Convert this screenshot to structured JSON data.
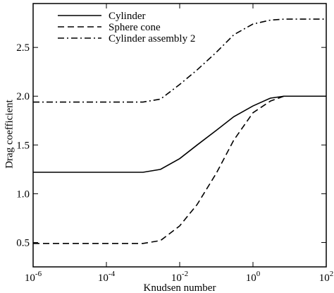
{
  "chart_data": {
    "type": "line",
    "x_label": "Knudsen number",
    "y_label": "Drag coefficient",
    "x_scale": "log",
    "x": [
      1e-06,
      0.001,
      0.003,
      0.01,
      0.03,
      0.1,
      0.3,
      1,
      3,
      7,
      100
    ],
    "series": [
      {
        "name": "Cylinder",
        "color": "#000000",
        "style": "solid",
        "values": [
          1.22,
          1.22,
          1.25,
          1.36,
          1.5,
          1.65,
          1.79,
          1.9,
          1.98,
          2.0,
          2.0
        ]
      },
      {
        "name": "Sphere cone",
        "color": "#000000",
        "style": "dashed",
        "values": [
          0.49,
          0.49,
          0.52,
          0.67,
          0.89,
          1.21,
          1.55,
          1.83,
          1.95,
          2.0,
          2.0
        ]
      },
      {
        "name": "Cylinder assembly 2",
        "color": "#000000",
        "style": "dashdot",
        "values": [
          1.94,
          1.94,
          1.97,
          2.12,
          2.27,
          2.45,
          2.63,
          2.74,
          2.78,
          2.79,
          2.79
        ]
      }
    ],
    "xlim": [
      1e-06,
      100
    ],
    "xticks": [
      {
        "value": 1e-06,
        "label": "10",
        "exponent": "-6"
      },
      {
        "value": 0.0001,
        "label": "10",
        "exponent": "-4"
      },
      {
        "value": 0.01,
        "label": "10",
        "exponent": "-2"
      },
      {
        "value": 1,
        "label": "10",
        "exponent": "0"
      },
      {
        "value": 100,
        "label": "10",
        "exponent": "2"
      }
    ],
    "ylim": [
      0.25,
      2.95
    ],
    "yticks": [
      0.5,
      {
        "value": 1,
        "label": "1.0"
      },
      1.5,
      {
        "value": 2,
        "label": "2.0"
      },
      2.5
    ],
    "legend": "upper-left"
  }
}
